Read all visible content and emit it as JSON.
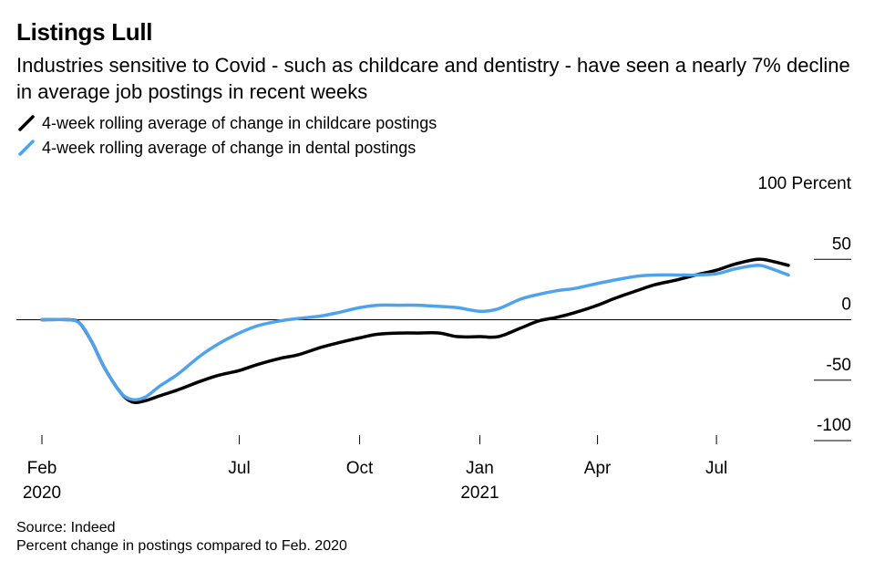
{
  "title": "Listings Lull",
  "subtitle": "Industries sensitive to Covid - such as childcare and dentistry - have seen a nearly 7% decline in average job postings in recent weeks",
  "footer": {
    "source": "Source: Indeed",
    "note": "Percent change in postings compared to Feb. 2020"
  },
  "chart_data": {
    "type": "line",
    "ylim": [
      -100,
      100
    ],
    "yticks": [
      {
        "value": 100,
        "label": "100 Percent"
      },
      {
        "value": 50,
        "label": "50"
      },
      {
        "value": 0,
        "label": "0"
      },
      {
        "value": -50,
        "label": "-50"
      },
      {
        "value": -100,
        "label": "-100"
      }
    ],
    "xticks": [
      {
        "date": "2020-02-01",
        "label": "Feb",
        "sublabel": "2020"
      },
      {
        "date": "2020-07-01",
        "label": "Jul",
        "sublabel": ""
      },
      {
        "date": "2020-10-01",
        "label": "Oct",
        "sublabel": ""
      },
      {
        "date": "2021-01-01",
        "label": "Jan",
        "sublabel": "2021"
      },
      {
        "date": "2021-04-01",
        "label": "Apr",
        "sublabel": ""
      },
      {
        "date": "2021-07-01",
        "label": "Jul",
        "sublabel": ""
      }
    ],
    "series": [
      {
        "name": "4-week rolling average of change in childcare postings",
        "color": "#000000",
        "points": [
          [
            "2020-02-01",
            0
          ],
          [
            "2020-02-22",
            0
          ],
          [
            "2020-03-01",
            -3
          ],
          [
            "2020-03-10",
            -18
          ],
          [
            "2020-03-20",
            -40
          ],
          [
            "2020-04-01",
            -60
          ],
          [
            "2020-04-10",
            -68
          ],
          [
            "2020-04-20",
            -67
          ],
          [
            "2020-05-01",
            -63
          ],
          [
            "2020-05-15",
            -58
          ],
          [
            "2020-06-01",
            -51
          ],
          [
            "2020-06-15",
            -46
          ],
          [
            "2020-07-01",
            -42
          ],
          [
            "2020-07-15",
            -37
          ],
          [
            "2020-08-01",
            -32
          ],
          [
            "2020-08-15",
            -29
          ],
          [
            "2020-09-01",
            -23
          ],
          [
            "2020-09-15",
            -19
          ],
          [
            "2020-10-01",
            -15
          ],
          [
            "2020-10-15",
            -12
          ],
          [
            "2020-11-01",
            -11
          ],
          [
            "2020-11-15",
            -11
          ],
          [
            "2020-12-01",
            -11
          ],
          [
            "2020-12-15",
            -14
          ],
          [
            "2021-01-01",
            -14
          ],
          [
            "2021-01-15",
            -14
          ],
          [
            "2021-02-01",
            -7
          ],
          [
            "2021-02-15",
            -1
          ],
          [
            "2021-03-01",
            2
          ],
          [
            "2021-03-15",
            6
          ],
          [
            "2021-04-01",
            12
          ],
          [
            "2021-04-15",
            18
          ],
          [
            "2021-05-01",
            24
          ],
          [
            "2021-05-15",
            29
          ],
          [
            "2021-06-01",
            33
          ],
          [
            "2021-06-15",
            37
          ],
          [
            "2021-07-01",
            41
          ],
          [
            "2021-07-15",
            46
          ],
          [
            "2021-08-01",
            50
          ],
          [
            "2021-08-10",
            49
          ],
          [
            "2021-08-25",
            45
          ]
        ]
      },
      {
        "name": "4-week rolling average of change in dental postings",
        "color": "#4da3ee",
        "points": [
          [
            "2020-02-01",
            0
          ],
          [
            "2020-02-20",
            0
          ],
          [
            "2020-03-01",
            -3
          ],
          [
            "2020-03-10",
            -18
          ],
          [
            "2020-03-20",
            -40
          ],
          [
            "2020-04-01",
            -60
          ],
          [
            "2020-04-10",
            -66
          ],
          [
            "2020-04-20",
            -64
          ],
          [
            "2020-05-01",
            -55
          ],
          [
            "2020-05-15",
            -45
          ],
          [
            "2020-06-01",
            -30
          ],
          [
            "2020-06-15",
            -20
          ],
          [
            "2020-07-01",
            -11
          ],
          [
            "2020-07-15",
            -5
          ],
          [
            "2020-08-01",
            -1
          ],
          [
            "2020-08-15",
            1
          ],
          [
            "2020-09-01",
            3
          ],
          [
            "2020-09-15",
            6
          ],
          [
            "2020-10-01",
            10
          ],
          [
            "2020-10-15",
            12
          ],
          [
            "2020-11-01",
            12
          ],
          [
            "2020-11-15",
            12
          ],
          [
            "2020-12-01",
            11
          ],
          [
            "2020-12-15",
            10
          ],
          [
            "2021-01-01",
            7
          ],
          [
            "2021-01-15",
            9
          ],
          [
            "2021-02-01",
            17
          ],
          [
            "2021-02-15",
            21
          ],
          [
            "2021-03-01",
            24
          ],
          [
            "2021-03-15",
            26
          ],
          [
            "2021-04-01",
            30
          ],
          [
            "2021-04-15",
            33
          ],
          [
            "2021-05-01",
            36
          ],
          [
            "2021-05-15",
            37
          ],
          [
            "2021-06-01",
            37
          ],
          [
            "2021-06-15",
            37
          ],
          [
            "2021-07-01",
            38
          ],
          [
            "2021-07-15",
            42
          ],
          [
            "2021-08-01",
            45
          ],
          [
            "2021-08-10",
            43
          ],
          [
            "2021-08-25",
            37
          ]
        ]
      }
    ]
  }
}
